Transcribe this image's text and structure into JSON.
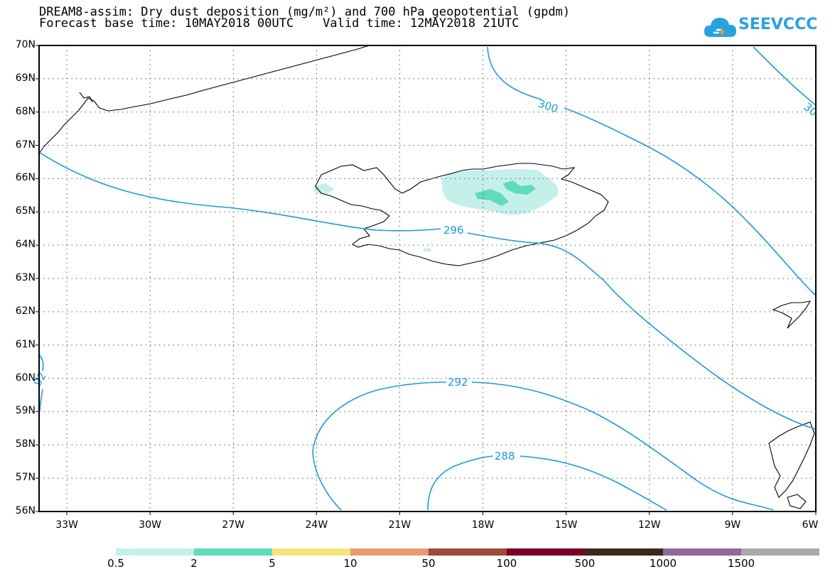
{
  "title": {
    "line1": "DREAM8-assim: Dry dust deposition (mg/m²) and 700 hPa geopotential (gpdm)",
    "line2": "Forecast base time: 10MAY2018 00UTC    Valid time: 12MAY2018 21UTC"
  },
  "logo": {
    "text": "SEEVCCC",
    "icon": "cloud-icon",
    "color": "#29a3e0"
  },
  "map": {
    "lon_range": [
      -34,
      -6
    ],
    "lat_range": [
      56,
      70
    ],
    "lat_labels": [
      "70N",
      "69N",
      "68N",
      "67N",
      "66N",
      "65N",
      "64N",
      "63N",
      "62N",
      "61N",
      "60N",
      "59N",
      "58N",
      "57N",
      "56N"
    ],
    "lon_labels": [
      "33W",
      "30W",
      "27W",
      "24W",
      "21W",
      "18W",
      "15W",
      "12W",
      "9W",
      "6W"
    ],
    "contour_color": "#1a9be0",
    "contour_labels": [
      "300",
      "30",
      "296",
      "292",
      "92",
      "288"
    ]
  },
  "colorbar": {
    "labels": [
      "0.5",
      "2",
      "5",
      "10",
      "50",
      "100",
      "500",
      "1000",
      "1500"
    ],
    "colors": [
      "#c5f0ea",
      "#5fdcba",
      "#f6e67a",
      "#e89a70",
      "#a04a3c",
      "#7a0025",
      "#3b2a1c",
      "#8e6a9a",
      "#a9a9a9"
    ]
  }
}
